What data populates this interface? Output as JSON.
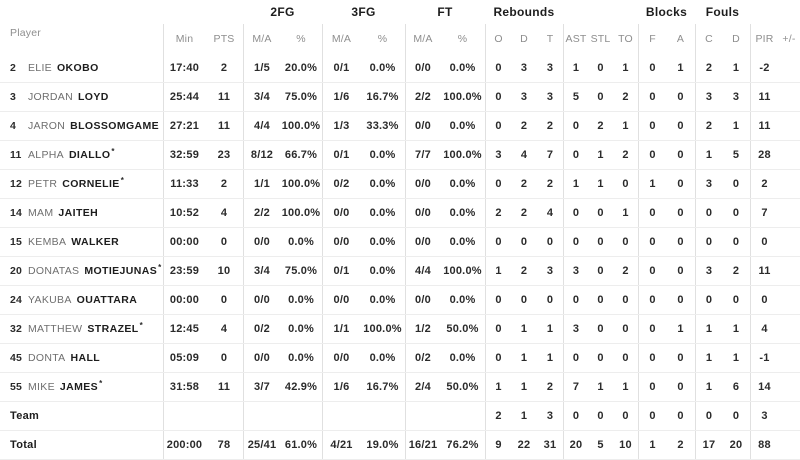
{
  "table": {
    "header": {
      "player_label": "Player",
      "groups": [
        {
          "label": "2FG"
        },
        {
          "label": "3FG"
        },
        {
          "label": "FT"
        },
        {
          "label": "Rebounds"
        },
        {
          "label": "Blocks"
        },
        {
          "label": "Fouls"
        }
      ],
      "columns": [
        "Min",
        "PTS",
        "M/A",
        "%",
        "M/A",
        "%",
        "M/A",
        "%",
        "O",
        "D",
        "T",
        "AST",
        "STL",
        "TO",
        "F",
        "A",
        "C",
        "D",
        "PIR",
        "+/-"
      ]
    },
    "rows": [
      {
        "number": "2",
        "first": "ELIE",
        "last": "OKOBO",
        "starter": false,
        "stats": [
          "17:40",
          "2",
          "1/5",
          "20.0%",
          "0/1",
          "0.0%",
          "0/0",
          "0.0%",
          "0",
          "3",
          "3",
          "1",
          "0",
          "1",
          "0",
          "1",
          "2",
          "1",
          "-2",
          ""
        ]
      },
      {
        "number": "3",
        "first": "JORDAN",
        "last": "LOYD",
        "starter": false,
        "stats": [
          "25:44",
          "11",
          "3/4",
          "75.0%",
          "1/6",
          "16.7%",
          "2/2",
          "100.0%",
          "0",
          "3",
          "3",
          "5",
          "0",
          "2",
          "0",
          "0",
          "3",
          "3",
          "11",
          ""
        ]
      },
      {
        "number": "4",
        "first": "JARON",
        "last": "BLOSSOMGAME",
        "starter": false,
        "stats": [
          "27:21",
          "11",
          "4/4",
          "100.0%",
          "1/3",
          "33.3%",
          "0/0",
          "0.0%",
          "0",
          "2",
          "2",
          "0",
          "2",
          "1",
          "0",
          "0",
          "2",
          "1",
          "11",
          ""
        ]
      },
      {
        "number": "11",
        "first": "ALPHA",
        "last": "DIALLO",
        "starter": true,
        "stats": [
          "32:59",
          "23",
          "8/12",
          "66.7%",
          "0/1",
          "0.0%",
          "7/7",
          "100.0%",
          "3",
          "4",
          "7",
          "0",
          "1",
          "2",
          "0",
          "0",
          "1",
          "5",
          "28",
          ""
        ]
      },
      {
        "number": "12",
        "first": "PETR",
        "last": "CORNELIE",
        "starter": true,
        "stats": [
          "11:33",
          "2",
          "1/1",
          "100.0%",
          "0/2",
          "0.0%",
          "0/0",
          "0.0%",
          "0",
          "2",
          "2",
          "1",
          "1",
          "0",
          "1",
          "0",
          "3",
          "0",
          "2",
          ""
        ]
      },
      {
        "number": "14",
        "first": "MAM",
        "last": "JAITEH",
        "starter": false,
        "stats": [
          "10:52",
          "4",
          "2/2",
          "100.0%",
          "0/0",
          "0.0%",
          "0/0",
          "0.0%",
          "2",
          "2",
          "4",
          "0",
          "0",
          "1",
          "0",
          "0",
          "0",
          "0",
          "7",
          ""
        ]
      },
      {
        "number": "15",
        "first": "KEMBA",
        "last": "WALKER",
        "starter": false,
        "stats": [
          "00:00",
          "0",
          "0/0",
          "0.0%",
          "0/0",
          "0.0%",
          "0/0",
          "0.0%",
          "0",
          "0",
          "0",
          "0",
          "0",
          "0",
          "0",
          "0",
          "0",
          "0",
          "0",
          ""
        ]
      },
      {
        "number": "20",
        "first": "DONATAS",
        "last": "MOTIEJUNAS",
        "starter": true,
        "stats": [
          "23:59",
          "10",
          "3/4",
          "75.0%",
          "0/1",
          "0.0%",
          "4/4",
          "100.0%",
          "1",
          "2",
          "3",
          "3",
          "0",
          "2",
          "0",
          "0",
          "3",
          "2",
          "11",
          ""
        ]
      },
      {
        "number": "24",
        "first": "YAKUBA",
        "last": "OUATTARA",
        "starter": false,
        "stats": [
          "00:00",
          "0",
          "0/0",
          "0.0%",
          "0/0",
          "0.0%",
          "0/0",
          "0.0%",
          "0",
          "0",
          "0",
          "0",
          "0",
          "0",
          "0",
          "0",
          "0",
          "0",
          "0",
          ""
        ]
      },
      {
        "number": "32",
        "first": "MATTHEW",
        "last": "STRAZEL",
        "starter": true,
        "stats": [
          "12:45",
          "4",
          "0/2",
          "0.0%",
          "1/1",
          "100.0%",
          "1/2",
          "50.0%",
          "0",
          "1",
          "1",
          "3",
          "0",
          "0",
          "0",
          "1",
          "1",
          "1",
          "4",
          ""
        ]
      },
      {
        "number": "45",
        "first": "DONTA",
        "last": "HALL",
        "starter": false,
        "stats": [
          "05:09",
          "0",
          "0/0",
          "0.0%",
          "0/0",
          "0.0%",
          "0/2",
          "0.0%",
          "0",
          "1",
          "1",
          "0",
          "0",
          "0",
          "0",
          "0",
          "1",
          "1",
          "-1",
          ""
        ]
      },
      {
        "number": "55",
        "first": "MIKE",
        "last": "JAMES",
        "starter": true,
        "stats": [
          "31:58",
          "11",
          "3/7",
          "42.9%",
          "1/6",
          "16.7%",
          "2/4",
          "50.0%",
          "1",
          "1",
          "2",
          "7",
          "1",
          "1",
          "0",
          "0",
          "1",
          "6",
          "14",
          ""
        ]
      }
    ],
    "team_row": {
      "label": "Team",
      "stats": [
        "",
        "",
        "",
        "",
        "",
        "",
        "",
        "",
        "2",
        "1",
        "3",
        "0",
        "0",
        "0",
        "0",
        "0",
        "0",
        "0",
        "3",
        ""
      ]
    },
    "total_row": {
      "label": "Total",
      "stats": [
        "200:00",
        "78",
        "25/41",
        "61.0%",
        "4/21",
        "19.0%",
        "16/21",
        "76.2%",
        "9",
        "22",
        "31",
        "20",
        "5",
        "10",
        "1",
        "2",
        "17",
        "20",
        "88",
        ""
      ]
    }
  },
  "colors": {
    "background": "#ffffff",
    "header_text": "#1d1d1d",
    "subheader_text": "#8e8e8e",
    "stat_text": "#2b2b2b",
    "first_name_text": "#6e6e6e",
    "row_divider": "#ededed",
    "column_divider": "#e0e0e0"
  }
}
